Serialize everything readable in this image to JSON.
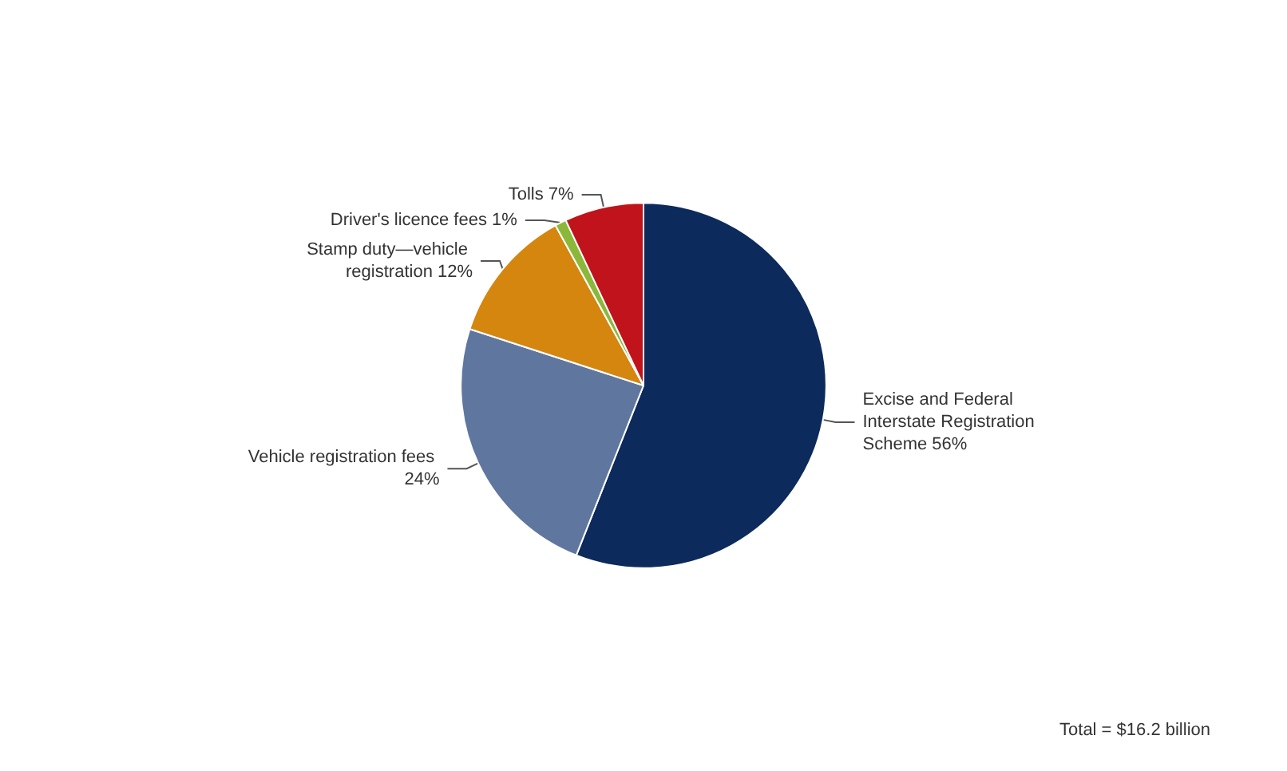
{
  "chart_data": {
    "type": "pie",
    "categories": [
      "Excise and Federal Interstate Registration Scheme",
      "Vehicle registration fees",
      "Stamp duty—vehicle registration",
      "Driver's licence fees",
      "Tolls"
    ],
    "values": [
      56,
      24,
      12,
      1,
      7
    ],
    "value_labels": [
      "56%",
      "24%",
      "12%",
      "1%",
      "7%"
    ],
    "colors": [
      "#0c2a5b",
      "#5f779f",
      "#d4860f",
      "#8cb83a",
      "#c0131b"
    ],
    "legend": false,
    "annotations": [
      "Total = $16.2 billion"
    ]
  }
}
